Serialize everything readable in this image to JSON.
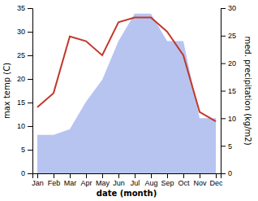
{
  "chart_data": {
    "type": "line",
    "x_label": "date (month)",
    "y_label": "max temp (C)",
    "y2_label": "med. precipitation (kg/m2)",
    "categories": [
      "Jan",
      "Feb",
      "Mar",
      "Apr",
      "May",
      "Jun",
      "Jul",
      "Aug",
      "Sep",
      "Oct",
      "Nov",
      "Dec"
    ],
    "series": [
      {
        "type": "area",
        "axis": "y2",
        "color": "#b8c4f0",
        "values": [
          7,
          7,
          8,
          13,
          17,
          24,
          29,
          29,
          24,
          24,
          10,
          10
        ]
      },
      {
        "type": "line",
        "color": "#c0392b",
        "values": [
          14,
          17,
          29,
          28,
          25,
          32,
          33,
          33,
          30,
          25,
          13,
          11
        ]
      }
    ],
    "ylim": [
      0,
      35
    ],
    "yticks": [
      0,
      5,
      10,
      15,
      20,
      25,
      30,
      35
    ],
    "y2lim": [
      0,
      30
    ],
    "y2ticks": [
      0,
      5,
      10,
      15,
      20,
      25,
      30
    ],
    "grid": false
  }
}
